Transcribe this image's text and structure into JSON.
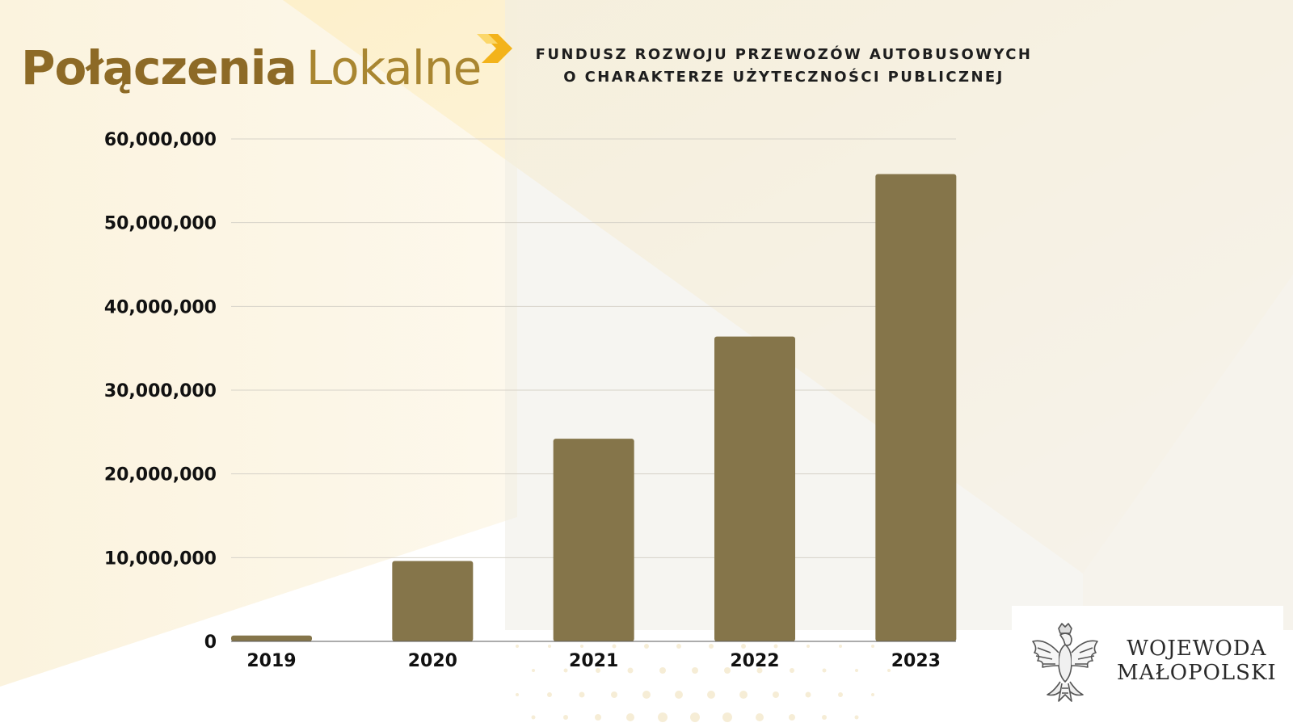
{
  "brand": {
    "bold": "Połączenia",
    "light": "Lokalne",
    "accent_color": "#8d6a26",
    "arrow_color": "#f3b31a"
  },
  "heading": {
    "line1": "FUNDUSZ ROZWOJU PRZEWOZÓW AUTOBUSOWYCH",
    "line2": "O CHARAKTERZE UŻYTECZNOŚCI PUBLICZNEJ"
  },
  "logo": {
    "line1": "WOJEWODA",
    "line2": "MAŁOPOLSKI"
  },
  "chart_data": {
    "type": "bar",
    "title": "",
    "xlabel": "",
    "ylabel": "",
    "categories": [
      "2019",
      "2020",
      "2021",
      "2022",
      "2023"
    ],
    "values": [
      700000,
      9600000,
      24200000,
      36400000,
      55800000
    ],
    "ylim": [
      0,
      60000000
    ],
    "yticks": [
      "0",
      "10,000,000",
      "20,000,000",
      "30,000,000",
      "40,000,000",
      "50,000,000",
      "60,000,000"
    ],
    "grid": true,
    "legend": "none",
    "bar_color": "#85754a"
  }
}
